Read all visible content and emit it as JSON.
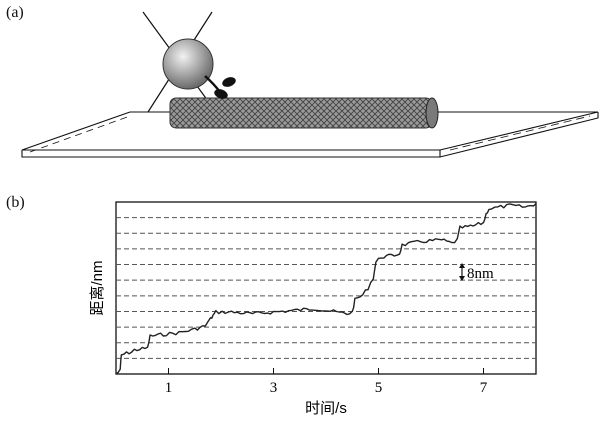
{
  "panels": {
    "a_label": "(a)",
    "b_label": "(b)"
  },
  "chart_data": {
    "type": "line",
    "xlabel": "时间/s",
    "ylabel": "距离/nm",
    "xlim": [
      0,
      8
    ],
    "ylim": [
      0,
      10
    ],
    "x_ticks": [
      1,
      3,
      5,
      7
    ],
    "step_annotation": "8nm",
    "grid": "horizontal dashed",
    "series": [
      {
        "x": [
          0.0,
          0.08,
          0.1,
          0.2,
          0.3,
          0.35,
          0.6,
          0.65,
          0.9,
          1.2,
          1.5,
          1.7,
          1.8,
          1.85,
          1.9,
          2.2,
          2.6,
          3.0,
          3.4,
          3.8,
          4.2,
          4.4,
          4.5,
          4.55,
          4.7,
          4.8,
          4.9,
          4.95,
          5.05,
          5.3,
          5.4,
          5.45,
          5.8,
          6.2,
          6.4,
          6.5,
          6.55,
          6.8,
          7.0,
          7.05,
          7.1,
          7.5,
          7.8,
          8.0
        ],
        "y": [
          0.0,
          0.2,
          1.1,
          1.2,
          1.3,
          1.4,
          1.5,
          2.2,
          2.3,
          2.4,
          2.6,
          2.8,
          3.2,
          3.4,
          3.6,
          3.6,
          3.5,
          3.6,
          3.7,
          3.8,
          3.6,
          3.5,
          3.6,
          4.3,
          4.6,
          5.0,
          5.6,
          6.5,
          6.8,
          6.9,
          7.0,
          7.5,
          7.7,
          7.8,
          7.6,
          7.8,
          8.5,
          8.6,
          8.8,
          9.3,
          9.6,
          9.8,
          9.7,
          9.9
        ]
      }
    ]
  }
}
